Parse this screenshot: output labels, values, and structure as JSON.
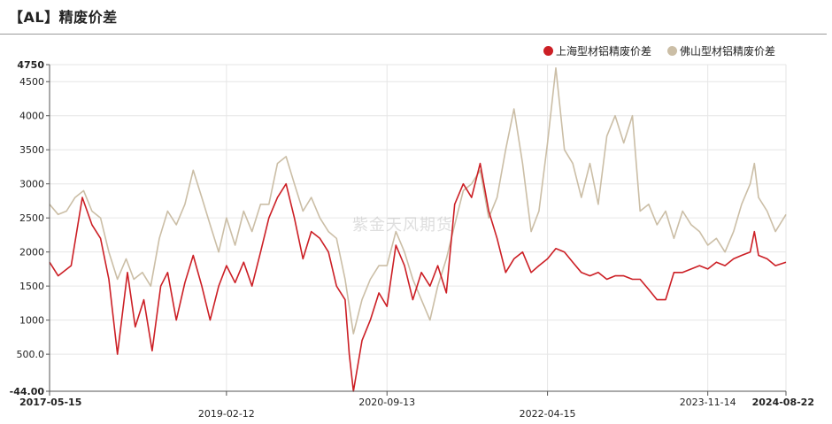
{
  "title": "【AL】精废价差",
  "watermark": "紫金天风期货",
  "colors": {
    "shanghai": "#cc1f25",
    "foshan": "#cbbea6",
    "grid": "#e6e6e6",
    "axis": "#555555"
  },
  "chart_data": {
    "type": "line",
    "title": "【AL】精废价差",
    "legend_position": "top-right",
    "grid": true,
    "ylim": [
      -44,
      4750
    ],
    "y_ticks": [
      {
        "value": -44,
        "label": "-44.00"
      },
      {
        "value": 500,
        "label": "500.0"
      },
      {
        "value": 1000,
        "label": "1000"
      },
      {
        "value": 1500,
        "label": "1500"
      },
      {
        "value": 2000,
        "label": "2000"
      },
      {
        "value": 2500,
        "label": "2500"
      },
      {
        "value": 3000,
        "label": "3000"
      },
      {
        "value": 3500,
        "label": "3500"
      },
      {
        "value": 4000,
        "label": "4000"
      },
      {
        "value": 4500,
        "label": "4500"
      },
      {
        "value": 4750,
        "label": "4750"
      }
    ],
    "xlim": [
      "2017-05-15",
      "2024-08-22"
    ],
    "x_ticks": [
      {
        "date": "2017-05-15",
        "label": "2017-05-15",
        "row": 1,
        "bold": true
      },
      {
        "date": "2019-02-12",
        "label": "2019-02-12",
        "row": 2,
        "bold": false
      },
      {
        "date": "2020-09-13",
        "label": "2020-09-13",
        "row": 1,
        "bold": false
      },
      {
        "date": "2022-04-15",
        "label": "2022-04-15",
        "row": 2,
        "bold": false
      },
      {
        "date": "2023-11-14",
        "label": "2023-11-14",
        "row": 1,
        "bold": false
      },
      {
        "date": "2024-08-22",
        "label": "2024-08-22",
        "row": 1,
        "bold": true
      }
    ],
    "series": [
      {
        "name": "上海型材铝精废价差",
        "color": "#cc1f25",
        "points": [
          [
            "2017-05-15",
            1850
          ],
          [
            "2017-06-15",
            1650
          ],
          [
            "2017-08-01",
            1800
          ],
          [
            "2017-09-10",
            2800
          ],
          [
            "2017-10-15",
            2400
          ],
          [
            "2017-11-15",
            2200
          ],
          [
            "2017-12-15",
            1600
          ],
          [
            "2018-01-15",
            500
          ],
          [
            "2018-02-20",
            1700
          ],
          [
            "2018-03-20",
            900
          ],
          [
            "2018-04-20",
            1300
          ],
          [
            "2018-05-20",
            550
          ],
          [
            "2018-06-20",
            1500
          ],
          [
            "2018-07-15",
            1700
          ],
          [
            "2018-08-15",
            1000
          ],
          [
            "2018-09-15",
            1550
          ],
          [
            "2018-10-15",
            1950
          ],
          [
            "2018-11-15",
            1500
          ],
          [
            "2018-12-15",
            1000
          ],
          [
            "2019-01-15",
            1500
          ],
          [
            "2019-02-12",
            1800
          ],
          [
            "2019-03-15",
            1550
          ],
          [
            "2019-04-15",
            1850
          ],
          [
            "2019-05-15",
            1500
          ],
          [
            "2019-06-15",
            2000
          ],
          [
            "2019-07-15",
            2500
          ],
          [
            "2019-08-15",
            2800
          ],
          [
            "2019-09-15",
            3000
          ],
          [
            "2019-10-15",
            2500
          ],
          [
            "2019-11-15",
            1900
          ],
          [
            "2019-12-15",
            2300
          ],
          [
            "2020-01-15",
            2200
          ],
          [
            "2020-02-15",
            2000
          ],
          [
            "2020-03-15",
            1500
          ],
          [
            "2020-04-15",
            1300
          ],
          [
            "2020-04-30",
            500
          ],
          [
            "2020-05-15",
            -44
          ],
          [
            "2020-06-15",
            700
          ],
          [
            "2020-07-15",
            1000
          ],
          [
            "2020-08-15",
            1400
          ],
          [
            "2020-09-13",
            1200
          ],
          [
            "2020-10-15",
            2100
          ],
          [
            "2020-11-15",
            1800
          ],
          [
            "2020-12-15",
            1300
          ],
          [
            "2021-01-15",
            1700
          ],
          [
            "2021-02-15",
            1500
          ],
          [
            "2021-03-15",
            1800
          ],
          [
            "2021-04-15",
            1400
          ],
          [
            "2021-05-15",
            2700
          ],
          [
            "2021-06-15",
            3000
          ],
          [
            "2021-07-15",
            2800
          ],
          [
            "2021-08-15",
            3300
          ],
          [
            "2021-09-15",
            2600
          ],
          [
            "2021-10-15",
            2200
          ],
          [
            "2021-11-15",
            1700
          ],
          [
            "2021-12-15",
            1900
          ],
          [
            "2022-01-15",
            2000
          ],
          [
            "2022-02-15",
            1700
          ],
          [
            "2022-03-15",
            1800
          ],
          [
            "2022-04-15",
            1900
          ],
          [
            "2022-05-15",
            2050
          ],
          [
            "2022-06-15",
            2000
          ],
          [
            "2022-07-15",
            1850
          ],
          [
            "2022-08-15",
            1700
          ],
          [
            "2022-09-15",
            1650
          ],
          [
            "2022-10-15",
            1700
          ],
          [
            "2022-11-15",
            1600
          ],
          [
            "2022-12-15",
            1650
          ],
          [
            "2023-01-15",
            1650
          ],
          [
            "2023-02-15",
            1600
          ],
          [
            "2023-03-15",
            1600
          ],
          [
            "2023-04-15",
            1450
          ],
          [
            "2023-05-15",
            1300
          ],
          [
            "2023-06-15",
            1300
          ],
          [
            "2023-07-15",
            1700
          ],
          [
            "2023-08-15",
            1700
          ],
          [
            "2023-09-15",
            1750
          ],
          [
            "2023-10-15",
            1800
          ],
          [
            "2023-11-14",
            1750
          ],
          [
            "2023-12-15",
            1850
          ],
          [
            "2024-01-15",
            1800
          ],
          [
            "2024-02-15",
            1900
          ],
          [
            "2024-03-15",
            1950
          ],
          [
            "2024-04-15",
            2000
          ],
          [
            "2024-04-30",
            2300
          ],
          [
            "2024-05-15",
            1950
          ],
          [
            "2024-06-15",
            1900
          ],
          [
            "2024-07-15",
            1800
          ],
          [
            "2024-08-22",
            1850
          ]
        ]
      },
      {
        "name": "佛山型材铝精废价差",
        "color": "#cbbea6",
        "points": [
          [
            "2017-05-15",
            2700
          ],
          [
            "2017-06-15",
            2550
          ],
          [
            "2017-07-15",
            2600
          ],
          [
            "2017-08-15",
            2800
          ],
          [
            "2017-09-15",
            2900
          ],
          [
            "2017-10-15",
            2600
          ],
          [
            "2017-11-15",
            2500
          ],
          [
            "2017-12-15",
            2000
          ],
          [
            "2018-01-15",
            1600
          ],
          [
            "2018-02-15",
            1900
          ],
          [
            "2018-03-15",
            1600
          ],
          [
            "2018-04-15",
            1700
          ],
          [
            "2018-05-15",
            1500
          ],
          [
            "2018-06-15",
            2200
          ],
          [
            "2018-07-15",
            2600
          ],
          [
            "2018-08-15",
            2400
          ],
          [
            "2018-09-15",
            2700
          ],
          [
            "2018-10-15",
            3200
          ],
          [
            "2018-11-15",
            2800
          ],
          [
            "2018-12-15",
            2400
          ],
          [
            "2019-01-15",
            2000
          ],
          [
            "2019-02-12",
            2500
          ],
          [
            "2019-03-15",
            2100
          ],
          [
            "2019-04-15",
            2600
          ],
          [
            "2019-05-15",
            2300
          ],
          [
            "2019-06-15",
            2700
          ],
          [
            "2019-07-15",
            2700
          ],
          [
            "2019-08-15",
            3300
          ],
          [
            "2019-09-15",
            3400
          ],
          [
            "2019-10-15",
            3000
          ],
          [
            "2019-11-15",
            2600
          ],
          [
            "2019-12-15",
            2800
          ],
          [
            "2020-01-15",
            2500
          ],
          [
            "2020-02-15",
            2300
          ],
          [
            "2020-03-15",
            2200
          ],
          [
            "2020-04-15",
            1600
          ],
          [
            "2020-05-15",
            800
          ],
          [
            "2020-06-15",
            1300
          ],
          [
            "2020-07-15",
            1600
          ],
          [
            "2020-08-15",
            1800
          ],
          [
            "2020-09-13",
            1800
          ],
          [
            "2020-10-15",
            2300
          ],
          [
            "2020-11-15",
            2000
          ],
          [
            "2020-12-15",
            1600
          ],
          [
            "2021-01-15",
            1300
          ],
          [
            "2021-02-15",
            1000
          ],
          [
            "2021-03-15",
            1500
          ],
          [
            "2021-04-15",
            1900
          ],
          [
            "2021-05-15",
            2400
          ],
          [
            "2021-06-15",
            2900
          ],
          [
            "2021-07-15",
            3000
          ],
          [
            "2021-08-15",
            3200
          ],
          [
            "2021-09-15",
            2500
          ],
          [
            "2021-10-15",
            2800
          ],
          [
            "2021-11-15",
            3500
          ],
          [
            "2021-12-15",
            4100
          ],
          [
            "2022-01-15",
            3300
          ],
          [
            "2022-02-15",
            2300
          ],
          [
            "2022-03-15",
            2600
          ],
          [
            "2022-04-15",
            3600
          ],
          [
            "2022-05-15",
            4700
          ],
          [
            "2022-06-15",
            3500
          ],
          [
            "2022-07-15",
            3300
          ],
          [
            "2022-08-15",
            2800
          ],
          [
            "2022-09-15",
            3300
          ],
          [
            "2022-10-15",
            2700
          ],
          [
            "2022-11-15",
            3700
          ],
          [
            "2022-12-15",
            4000
          ],
          [
            "2023-01-15",
            3600
          ],
          [
            "2023-02-15",
            4000
          ],
          [
            "2023-03-15",
            2600
          ],
          [
            "2023-04-15",
            2700
          ],
          [
            "2023-05-15",
            2400
          ],
          [
            "2023-06-15",
            2600
          ],
          [
            "2023-07-15",
            2200
          ],
          [
            "2023-08-15",
            2600
          ],
          [
            "2023-09-15",
            2400
          ],
          [
            "2023-10-15",
            2300
          ],
          [
            "2023-11-14",
            2100
          ],
          [
            "2023-12-15",
            2200
          ],
          [
            "2024-01-15",
            2000
          ],
          [
            "2024-02-15",
            2300
          ],
          [
            "2024-03-15",
            2700
          ],
          [
            "2024-04-15",
            3000
          ],
          [
            "2024-04-30",
            3300
          ],
          [
            "2024-05-15",
            2800
          ],
          [
            "2024-06-15",
            2600
          ],
          [
            "2024-07-15",
            2300
          ],
          [
            "2024-08-22",
            2550
          ]
        ]
      }
    ]
  }
}
